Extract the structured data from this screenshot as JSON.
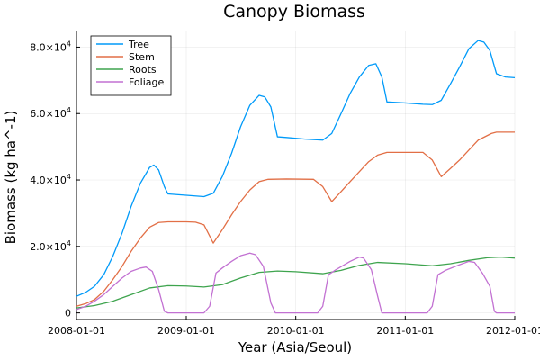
{
  "chart_data": {
    "type": "line",
    "title": "Canopy Biomass",
    "xlabel": "Year (Asia/Seoul)",
    "ylabel": "Biomass (kg ha^-1)",
    "xlim": [
      "2008-01-01",
      "2012-01-01"
    ],
    "ylim": [
      -2000,
      85000
    ],
    "grid": true,
    "legend": "top-left",
    "x_ticks": [
      {
        "value": "2008-01-01",
        "label": "2008-01-01"
      },
      {
        "value": "2009-01-01",
        "label": "2009-01-01"
      },
      {
        "value": "2010-01-01",
        "label": "2010-01-01"
      },
      {
        "value": "2011-01-01",
        "label": "2011-01-01"
      },
      {
        "value": "2012-01-01",
        "label": "2012-01-01"
      }
    ],
    "y_ticks": [
      {
        "value": 0,
        "mantissa": "0",
        "exponent": ""
      },
      {
        "value": 20000,
        "mantissa": "2.0×10",
        "exponent": "4"
      },
      {
        "value": 40000,
        "mantissa": "4.0×10",
        "exponent": "4"
      },
      {
        "value": 60000,
        "mantissa": "6.0×10",
        "exponent": "4"
      },
      {
        "value": 80000,
        "mantissa": "8.0×10",
        "exponent": "4"
      }
    ],
    "series": [
      {
        "name": "Tree",
        "color": "#009af9",
        "points": [
          [
            "2008-01-01",
            5000
          ],
          [
            "2008-02-01",
            6200
          ],
          [
            "2008-03-01",
            8000
          ],
          [
            "2008-04-01",
            11500
          ],
          [
            "2008-05-01",
            17000
          ],
          [
            "2008-06-01",
            24000
          ],
          [
            "2008-07-01",
            32000
          ],
          [
            "2008-08-01",
            39000
          ],
          [
            "2008-09-01",
            43800
          ],
          [
            "2008-09-15",
            44500
          ],
          [
            "2008-10-01",
            43000
          ],
          [
            "2008-10-20",
            38000
          ],
          [
            "2008-11-01",
            35800
          ],
          [
            "2008-12-01",
            35600
          ],
          [
            "2009-01-01",
            35400
          ],
          [
            "2009-03-01",
            35000
          ],
          [
            "2009-04-01",
            36000
          ],
          [
            "2009-05-01",
            41000
          ],
          [
            "2009-06-01",
            48000
          ],
          [
            "2009-07-01",
            56000
          ],
          [
            "2009-08-01",
            62500
          ],
          [
            "2009-09-01",
            65500
          ],
          [
            "2009-09-20",
            65000
          ],
          [
            "2009-10-10",
            62000
          ],
          [
            "2009-11-01",
            53000
          ],
          [
            "2009-12-01",
            52800
          ],
          [
            "2010-02-01",
            52300
          ],
          [
            "2010-04-01",
            52000
          ],
          [
            "2010-05-01",
            54000
          ],
          [
            "2010-06-01",
            60000
          ],
          [
            "2010-07-01",
            66000
          ],
          [
            "2010-08-01",
            71000
          ],
          [
            "2010-09-01",
            74500
          ],
          [
            "2010-09-25",
            75000
          ],
          [
            "2010-10-15",
            71000
          ],
          [
            "2010-11-01",
            63500
          ],
          [
            "2011-01-01",
            63200
          ],
          [
            "2011-03-01",
            62800
          ],
          [
            "2011-04-01",
            62700
          ],
          [
            "2011-05-01",
            64000
          ],
          [
            "2011-06-01",
            69000
          ],
          [
            "2011-07-01",
            74000
          ],
          [
            "2011-08-01",
            79500
          ],
          [
            "2011-09-01",
            82000
          ],
          [
            "2011-09-20",
            81500
          ],
          [
            "2011-10-10",
            79000
          ],
          [
            "2011-11-01",
            72000
          ],
          [
            "2011-12-01",
            71000
          ],
          [
            "2012-01-01",
            70800
          ]
        ]
      },
      {
        "name": "Stem",
        "color": "#e26f46",
        "points": [
          [
            "2008-01-01",
            2000
          ],
          [
            "2008-02-01",
            2800
          ],
          [
            "2008-03-01",
            4000
          ],
          [
            "2008-04-01",
            6500
          ],
          [
            "2008-05-01",
            10000
          ],
          [
            "2008-06-01",
            14000
          ],
          [
            "2008-07-01",
            18500
          ],
          [
            "2008-08-01",
            22500
          ],
          [
            "2008-09-01",
            25800
          ],
          [
            "2008-10-01",
            27200
          ],
          [
            "2008-11-01",
            27400
          ],
          [
            "2009-01-01",
            27400
          ],
          [
            "2009-02-01",
            27300
          ],
          [
            "2009-03-01",
            26500
          ],
          [
            "2009-04-01",
            21000
          ],
          [
            "2009-05-01",
            25000
          ],
          [
            "2009-06-01",
            29500
          ],
          [
            "2009-07-01",
            33500
          ],
          [
            "2009-08-01",
            37000
          ],
          [
            "2009-09-01",
            39500
          ],
          [
            "2009-10-01",
            40200
          ],
          [
            "2009-12-01",
            40300
          ],
          [
            "2010-03-01",
            40200
          ],
          [
            "2010-04-01",
            38000
          ],
          [
            "2010-05-01",
            33500
          ],
          [
            "2010-06-01",
            36500
          ],
          [
            "2010-07-01",
            39500
          ],
          [
            "2010-08-01",
            42500
          ],
          [
            "2010-09-01",
            45500
          ],
          [
            "2010-10-01",
            47500
          ],
          [
            "2010-11-01",
            48300
          ],
          [
            "2011-03-01",
            48300
          ],
          [
            "2011-04-01",
            46000
          ],
          [
            "2011-05-01",
            41000
          ],
          [
            "2011-06-01",
            43500
          ],
          [
            "2011-07-01",
            46000
          ],
          [
            "2011-08-01",
            49000
          ],
          [
            "2011-09-01",
            52000
          ],
          [
            "2011-10-15",
            54000
          ],
          [
            "2011-11-01",
            54400
          ],
          [
            "2012-01-01",
            54400
          ]
        ]
      },
      {
        "name": "Roots",
        "color": "#3ea44e",
        "points": [
          [
            "2008-01-01",
            1500
          ],
          [
            "2008-03-01",
            2200
          ],
          [
            "2008-05-01",
            3500
          ],
          [
            "2008-07-01",
            5500
          ],
          [
            "2008-09-01",
            7500
          ],
          [
            "2008-11-01",
            8200
          ],
          [
            "2009-01-01",
            8100
          ],
          [
            "2009-03-01",
            7800
          ],
          [
            "2009-05-01",
            8500
          ],
          [
            "2009-07-01",
            10500
          ],
          [
            "2009-09-01",
            12200
          ],
          [
            "2009-11-01",
            12600
          ],
          [
            "2010-01-01",
            12400
          ],
          [
            "2010-04-01",
            11800
          ],
          [
            "2010-06-01",
            12800
          ],
          [
            "2010-08-01",
            14300
          ],
          [
            "2010-10-01",
            15200
          ],
          [
            "2011-01-01",
            14800
          ],
          [
            "2011-04-01",
            14200
          ],
          [
            "2011-06-01",
            14800
          ],
          [
            "2011-08-01",
            15800
          ],
          [
            "2011-10-01",
            16600
          ],
          [
            "2011-11-15",
            16800
          ],
          [
            "2012-01-01",
            16500
          ]
        ]
      },
      {
        "name": "Foliage",
        "color": "#c271d2",
        "points": [
          [
            "2008-01-01",
            1000
          ],
          [
            "2008-02-01",
            2000
          ],
          [
            "2008-03-01",
            3500
          ],
          [
            "2008-04-01",
            5500
          ],
          [
            "2008-05-01",
            8000
          ],
          [
            "2008-06-01",
            10500
          ],
          [
            "2008-07-01",
            12500
          ],
          [
            "2008-08-01",
            13500
          ],
          [
            "2008-08-20",
            13800
          ],
          [
            "2008-09-10",
            12500
          ],
          [
            "2008-10-01",
            7000
          ],
          [
            "2008-10-20",
            500
          ],
          [
            "2008-11-01",
            0
          ],
          [
            "2009-03-01",
            0
          ],
          [
            "2009-03-20",
            2000
          ],
          [
            "2009-04-10",
            12000
          ],
          [
            "2009-05-01",
            13500
          ],
          [
            "2009-06-01",
            15500
          ],
          [
            "2009-07-01",
            17200
          ],
          [
            "2009-08-01",
            18000
          ],
          [
            "2009-08-20",
            17500
          ],
          [
            "2009-09-15",
            14000
          ],
          [
            "2009-10-10",
            3000
          ],
          [
            "2009-10-25",
            0
          ],
          [
            "2010-03-15",
            0
          ],
          [
            "2010-04-01",
            2000
          ],
          [
            "2010-04-20",
            11500
          ],
          [
            "2010-05-15",
            13000
          ],
          [
            "2010-07-01",
            15500
          ],
          [
            "2010-08-01",
            16800
          ],
          [
            "2010-08-15",
            16500
          ],
          [
            "2010-09-10",
            13000
          ],
          [
            "2010-10-01",
            5000
          ],
          [
            "2010-10-15",
            0
          ],
          [
            "2011-03-15",
            0
          ],
          [
            "2011-04-01",
            2000
          ],
          [
            "2011-04-20",
            11500
          ],
          [
            "2011-05-15",
            12800
          ],
          [
            "2011-07-01",
            14500
          ],
          [
            "2011-08-01",
            15500
          ],
          [
            "2011-08-20",
            15200
          ],
          [
            "2011-09-15",
            12000
          ],
          [
            "2011-10-10",
            8000
          ],
          [
            "2011-10-25",
            500
          ],
          [
            "2011-11-01",
            0
          ],
          [
            "2012-01-01",
            0
          ]
        ]
      }
    ]
  }
}
